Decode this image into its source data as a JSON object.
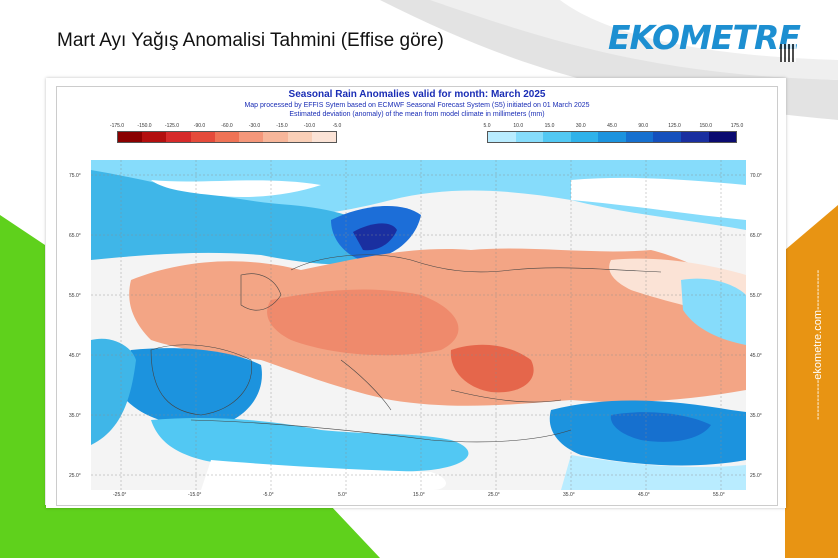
{
  "page": {
    "title": "Mart Ayı Yağış Anomalisi Tahmini (Effise göre)",
    "side_text": "-----------ekometre.com-----------"
  },
  "logo": {
    "text": "EKOMETRE",
    "badge": "24",
    "color": "#1d8fd1"
  },
  "colors": {
    "green": "#5fd11c",
    "orange": "#e89413",
    "gray_swoosh": "#d9d9d9",
    "map_title": "#1a2db5",
    "ocean_blue": "#3fb6e8",
    "land_orange": "#f3a585"
  },
  "map": {
    "title": "Seasonal Rain Anomalies valid for month: March 2025",
    "subtitle1": "Map processed by EFFIS Sytem based on ECMWF Seasonal Forecast System (S5) initiated on 01 March 2025",
    "subtitle2": "Estimated deviation (anomaly) of the mean from model climate in millimeters (mm)",
    "legend_dry": {
      "ticks": [
        "-175.0",
        "-150.0",
        "-125.0",
        "-90.0",
        "-60.0",
        "-30.0",
        "-15.0",
        "-10.0",
        "-5.0"
      ],
      "colors": [
        "#8a0000",
        "#b30f0f",
        "#d62a2a",
        "#e54b3b",
        "#ef7356",
        "#f4977a",
        "#f7b69a",
        "#f9cfb7",
        "#fbe3d6"
      ]
    },
    "legend_wet": {
      "ticks": [
        "5.0",
        "10.0",
        "15.0",
        "30.0",
        "45.0",
        "90.0",
        "125.0",
        "150.0",
        "175.0"
      ],
      "colors": [
        "#b9ecff",
        "#86dcfb",
        "#52c8f3",
        "#2fb2ea",
        "#1c93de",
        "#1670cf",
        "#1550bd",
        "#1a2fa0",
        "#0a0a70"
      ]
    },
    "lon_labels": [
      "-25.0°",
      "-15.0°",
      "-5.0°",
      "5.0°",
      "15.0°",
      "25.0°",
      "35.0°",
      "45.0°",
      "55.0°"
    ],
    "lat_labels_left": [
      "75.0°",
      "65.0°",
      "55.0°",
      "45.0°",
      "35.0°",
      "25.0°"
    ],
    "lat_labels_right": [
      "70.0°",
      "65.0°",
      "55.0°",
      "45.0°",
      "35.0°",
      "25.0°"
    ]
  }
}
